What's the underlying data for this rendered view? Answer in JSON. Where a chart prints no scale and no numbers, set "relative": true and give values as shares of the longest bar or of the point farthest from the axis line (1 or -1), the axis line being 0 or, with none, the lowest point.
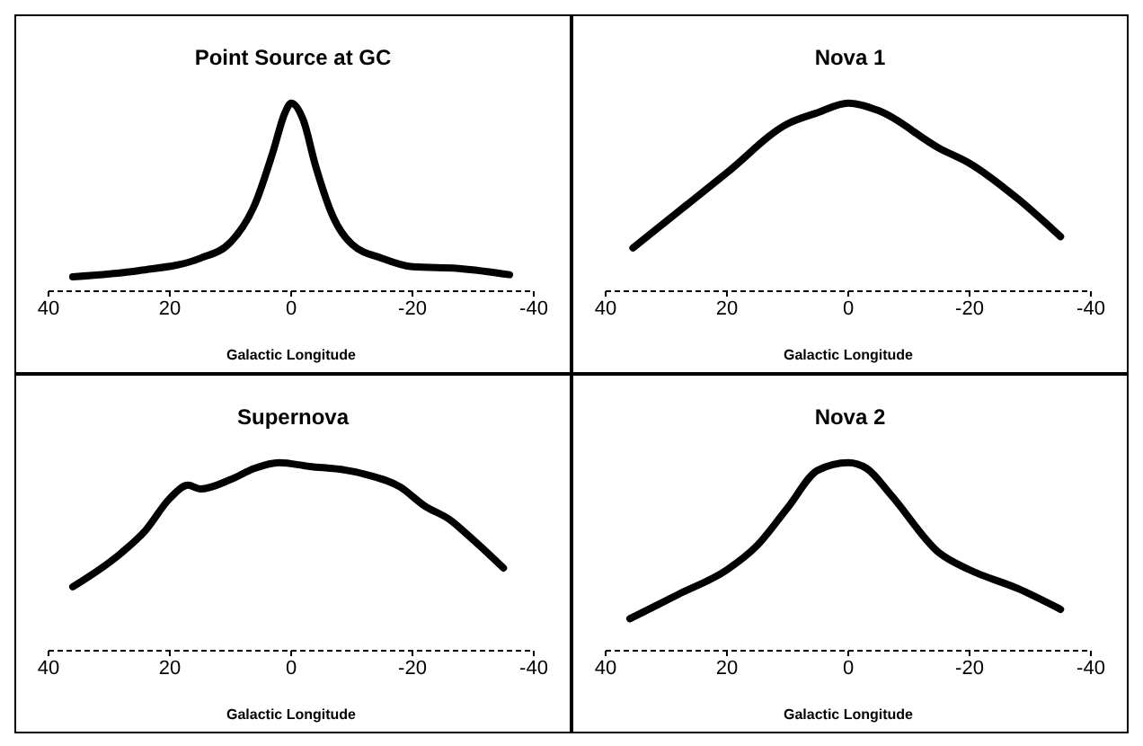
{
  "chart_data": [
    {
      "type": "line",
      "title": "Point Source at GC",
      "xlabel": "Galactic Longitude",
      "relative": true,
      "xlim": [
        40,
        -40
      ],
      "xticks": [
        40,
        20,
        0,
        -20,
        -40
      ],
      "x": [
        36,
        25,
        15,
        10,
        6,
        3,
        1,
        0,
        -2,
        -4,
        -7,
        -10,
        -15,
        -20,
        -28,
        -36
      ],
      "series": [
        {
          "color": "#000000",
          "values": [
            0.077,
            0.11,
            0.175,
            0.26,
            0.46,
            0.74,
            0.95,
            1,
            0.91,
            0.67,
            0.39,
            0.25,
            0.175,
            0.13,
            0.12,
            0.088
          ]
        }
      ]
    },
    {
      "type": "line",
      "title": "Nova 1",
      "xlabel": "Galactic Longitude",
      "relative": true,
      "xlim": [
        40,
        -40
      ],
      "xticks": [
        40,
        20,
        0,
        -20,
        -40
      ],
      "x": [
        35.5,
        20,
        10,
        5,
        0,
        -5,
        -15,
        -20,
        -28,
        -35
      ],
      "series": [
        {
          "color": "#000000",
          "values": [
            0.23,
            0.63,
            0.89,
            0.95,
            1,
            0.96,
            0.76,
            0.68,
            0.49,
            0.29
          ]
        }
      ]
    },
    {
      "type": "line",
      "title": "Supernova",
      "xlabel": "Galactic Longitude",
      "relative": true,
      "xlim": [
        40,
        -40
      ],
      "xticks": [
        40,
        20,
        0,
        -20,
        -40
      ],
      "x": [
        36,
        28,
        24,
        20,
        17,
        15,
        10,
        6,
        2,
        -3,
        -9,
        -12,
        -18,
        -22,
        -26,
        -30,
        -35
      ],
      "series": [
        {
          "color": "#000000",
          "values": [
            0.34,
            0.52,
            0.64,
            0.81,
            0.88,
            0.86,
            0.91,
            0.97,
            1,
            0.98,
            0.96,
            0.94,
            0.87,
            0.77,
            0.7,
            0.59,
            0.44
          ]
        }
      ]
    },
    {
      "type": "line",
      "title": "Nova 2",
      "xlabel": "Galactic Longitude",
      "relative": true,
      "xlim": [
        40,
        -40
      ],
      "xticks": [
        40,
        20,
        0,
        -20,
        -40
      ],
      "x": [
        36,
        28,
        20,
        15,
        10,
        5,
        0,
        -3,
        -7,
        -15,
        -20,
        -28,
        -35
      ],
      "series": [
        {
          "color": "#000000",
          "values": [
            0.17,
            0.3,
            0.43,
            0.56,
            0.76,
            0.96,
            1,
            0.97,
            0.83,
            0.52,
            0.43,
            0.33,
            0.22
          ]
        }
      ]
    }
  ]
}
